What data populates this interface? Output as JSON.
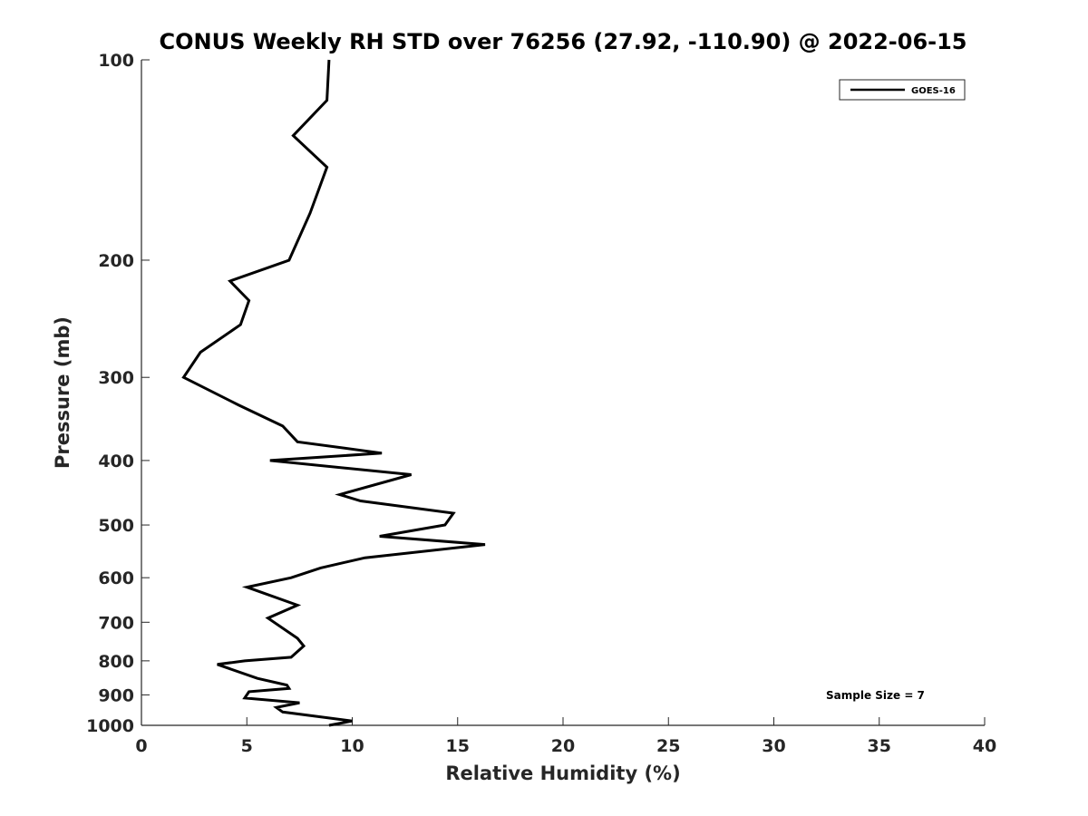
{
  "chart_data": {
    "type": "line",
    "title": "CONUS Weekly RH STD over 76256 (27.92, -110.90) @ 2022-06-15",
    "xlabel": "Relative Humidity (%)",
    "ylabel": "Pressure (mb)",
    "xlim": [
      0,
      40
    ],
    "ylim": [
      100,
      1000
    ],
    "y_scale": "log",
    "y_reversed": true,
    "x_ticks": [
      0,
      5,
      10,
      15,
      20,
      25,
      30,
      35,
      40
    ],
    "y_ticks": [
      100,
      200,
      300,
      400,
      500,
      600,
      700,
      800,
      900,
      1000
    ],
    "grid": false,
    "legend_position": "top-right",
    "series": [
      {
        "name": "GOES-16",
        "color": "#000000",
        "x": [
          8.9,
          8.8,
          7.2,
          8.8,
          8.0,
          7.0,
          4.2,
          5.1,
          4.7,
          2.8,
          2.0,
          4.6,
          6.7,
          7.4,
          11.4,
          6.1,
          12.8,
          9.4,
          10.4,
          14.8,
          14.4,
          11.3,
          16.3,
          10.6,
          8.5,
          7.1,
          5.0,
          7.4,
          6.0,
          7.4,
          7.7,
          7.1,
          4.9,
          3.6,
          5.5,
          6.9,
          7.0,
          5.1,
          4.9,
          7.5,
          6.4,
          6.7,
          10.0,
          8.9
        ],
        "y": [
          100,
          115,
          130,
          145,
          170,
          200,
          215,
          230,
          250,
          275,
          300,
          330,
          355,
          375,
          390,
          400,
          420,
          450,
          460,
          480,
          500,
          520,
          535,
          560,
          580,
          600,
          620,
          660,
          690,
          740,
          760,
          790,
          800,
          810,
          850,
          870,
          880,
          890,
          910,
          925,
          940,
          955,
          985,
          1000
        ]
      }
    ],
    "annotations": [
      "Sample Size = 7"
    ]
  }
}
